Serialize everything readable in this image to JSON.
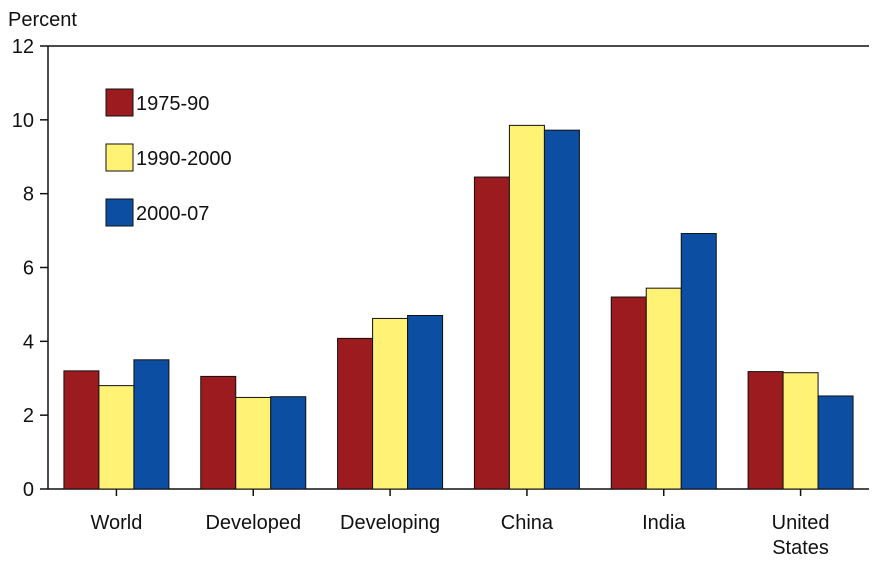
{
  "chart_data": {
    "type": "bar",
    "title": "",
    "xlabel": "",
    "ylabel": "Percent",
    "ylim": [
      0,
      12
    ],
    "yticks": [
      0,
      2,
      4,
      6,
      8,
      10,
      12
    ],
    "categories": [
      "World",
      "Developed",
      "Developing",
      "China",
      "India",
      "United States"
    ],
    "category_lines": [
      [
        "World"
      ],
      [
        "Developed"
      ],
      [
        "Developing"
      ],
      [
        "China"
      ],
      [
        "India"
      ],
      [
        "United",
        "States"
      ]
    ],
    "series": [
      {
        "name": "1975-90",
        "color": "#9b1b1f",
        "values": [
          3.2,
          3.05,
          4.08,
          8.45,
          5.2,
          3.18
        ]
      },
      {
        "name": "1990-2000",
        "color": "#fff275",
        "values": [
          2.8,
          2.48,
          4.62,
          9.85,
          5.44,
          3.15
        ]
      },
      {
        "name": "2000-07",
        "color": "#0b4ea2",
        "values": [
          3.5,
          2.5,
          4.7,
          9.72,
          6.92,
          2.52
        ]
      }
    ],
    "legend_position": "top-left",
    "grid": false
  }
}
